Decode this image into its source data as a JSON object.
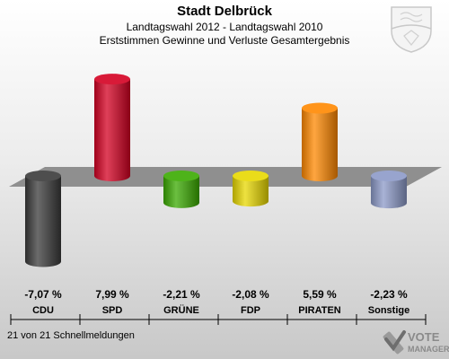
{
  "header": {
    "title": "Stadt Delbrück",
    "subtitle1": "Landtagswahl 2012 - Landtagswahl 2010",
    "subtitle2": "Erststimmen Gewinne und Verluste Gesamtergebnis"
  },
  "footer": {
    "text": "21 von 21 Schnellmeldungen"
  },
  "brand": {
    "line1": "VOTE",
    "line2": "MANAGER"
  },
  "chart_data": {
    "type": "bar",
    "title": "Landtagswahl 2012 - Landtagswahl 2010",
    "categories": [
      "CDU",
      "SPD",
      "GRÜNE",
      "FDP",
      "PIRATEN",
      "Sonstige"
    ],
    "values": [
      -7.07,
      7.99,
      -2.21,
      -2.08,
      5.59,
      -2.23
    ],
    "value_labels": [
      "-7,07 %",
      "7,99 %",
      "-2,21 %",
      "-2,08 %",
      "5,59 %",
      "-2,23 %"
    ],
    "colors": [
      "#3a3a3a",
      "#d40022",
      "#3aaa00",
      "#e8d800",
      "#ff8800",
      "#8c9ac8"
    ],
    "grid": false,
    "legend": "none"
  }
}
